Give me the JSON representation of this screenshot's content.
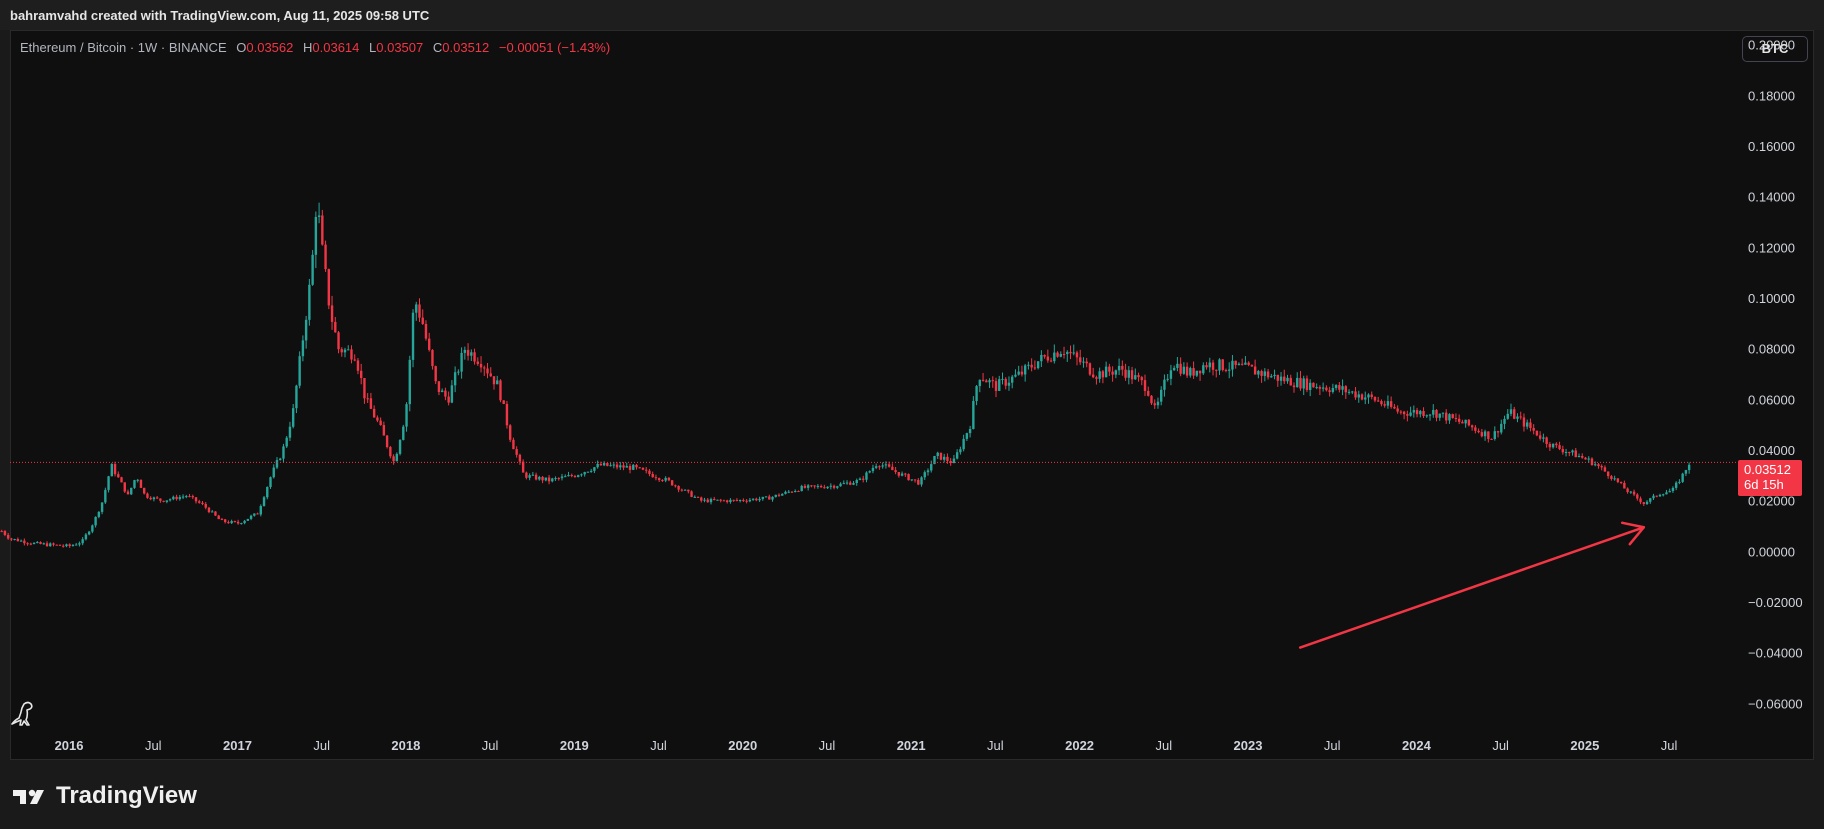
{
  "header": {
    "created_text": "bahramvahd created with TradingView.com, Aug 11, 2025 09:58 UTC"
  },
  "legend": {
    "symbol": "Ethereum / Bitcoin · 1W · BINANCE",
    "o_label": "O",
    "o_value": "0.03562",
    "h_label": "H",
    "h_value": "0.03614",
    "l_label": "L",
    "l_value": "0.03507",
    "c_label": "C",
    "c_value": "0.03512",
    "change": "−0.00051 (−1.43%)"
  },
  "currency_button": "BTC",
  "last_price": {
    "price": "0.03512",
    "countdown": "6d 15h"
  },
  "branding": {
    "logo_text": "TradingView"
  },
  "colors": {
    "up": "#26a69a",
    "down": "#f23645",
    "annotation": "#f23645",
    "background": "#0f0f0f"
  },
  "icons": [
    "tradingview-logo-icon",
    "dinosaur-icon"
  ],
  "chart_data": {
    "type": "candlestick",
    "title": "Ethereum / Bitcoin · 1W · BINANCE",
    "y_ticks": [
      "0.20000",
      "0.18000",
      "0.16000",
      "0.14000",
      "0.12000",
      "0.10000",
      "0.08000",
      "0.06000",
      "0.04000",
      "0.02000",
      "0.00000",
      "−0.02000",
      "−0.04000",
      "−0.06000"
    ],
    "ylim": [
      -0.065,
      0.205
    ],
    "x_ticks": [
      {
        "label": "2016",
        "t": 2016.0,
        "bold": true
      },
      {
        "label": "Jul",
        "t": 2016.5,
        "bold": false
      },
      {
        "label": "2017",
        "t": 2017.0,
        "bold": true
      },
      {
        "label": "Jul",
        "t": 2017.5,
        "bold": false
      },
      {
        "label": "2018",
        "t": 2018.0,
        "bold": true
      },
      {
        "label": "Jul",
        "t": 2018.5,
        "bold": false
      },
      {
        "label": "2019",
        "t": 2019.0,
        "bold": true
      },
      {
        "label": "Jul",
        "t": 2019.5,
        "bold": false
      },
      {
        "label": "2020",
        "t": 2020.0,
        "bold": true
      },
      {
        "label": "Jul",
        "t": 2020.5,
        "bold": false
      },
      {
        "label": "2021",
        "t": 2021.0,
        "bold": true
      },
      {
        "label": "Jul",
        "t": 2021.5,
        "bold": false
      },
      {
        "label": "2022",
        "t": 2022.0,
        "bold": true
      },
      {
        "label": "Jul",
        "t": 2022.5,
        "bold": false
      },
      {
        "label": "2023",
        "t": 2023.0,
        "bold": true
      },
      {
        "label": "Jul",
        "t": 2023.5,
        "bold": false
      },
      {
        "label": "2024",
        "t": 2024.0,
        "bold": true
      },
      {
        "label": "Jul",
        "t": 2024.5,
        "bold": false
      },
      {
        "label": "2025",
        "t": 2025.0,
        "bold": true
      },
      {
        "label": "Jul",
        "t": 2025.5,
        "bold": false
      }
    ],
    "xlim": [
      2015.59,
      2026.42
    ],
    "last_close": 0.03512,
    "grid": false,
    "price_path": [
      [
        2015.6,
        0.008
      ],
      [
        2015.65,
        0.005
      ],
      [
        2015.8,
        0.003
      ],
      [
        2016.0,
        0.002
      ],
      [
        2016.08,
        0.004
      ],
      [
        2016.15,
        0.012
      ],
      [
        2016.2,
        0.02
      ],
      [
        2016.25,
        0.034
      ],
      [
        2016.3,
        0.028
      ],
      [
        2016.35,
        0.022
      ],
      [
        2016.4,
        0.03
      ],
      [
        2016.45,
        0.022
      ],
      [
        2016.55,
        0.02
      ],
      [
        2016.7,
        0.022
      ],
      [
        2016.8,
        0.018
      ],
      [
        2016.9,
        0.012
      ],
      [
        2017.0,
        0.011
      ],
      [
        2017.12,
        0.015
      ],
      [
        2017.2,
        0.03
      ],
      [
        2017.27,
        0.04
      ],
      [
        2017.33,
        0.055
      ],
      [
        2017.38,
        0.08
      ],
      [
        2017.44,
        0.11
      ],
      [
        2017.47,
        0.14
      ],
      [
        2017.5,
        0.12
      ],
      [
        2017.55,
        0.095
      ],
      [
        2017.6,
        0.08
      ],
      [
        2017.7,
        0.078
      ],
      [
        2017.76,
        0.06
      ],
      [
        2017.84,
        0.05
      ],
      [
        2017.93,
        0.035
      ],
      [
        2018.0,
        0.055
      ],
      [
        2018.05,
        0.1
      ],
      [
        2018.1,
        0.09
      ],
      [
        2018.18,
        0.065
      ],
      [
        2018.25,
        0.06
      ],
      [
        2018.35,
        0.08
      ],
      [
        2018.45,
        0.075
      ],
      [
        2018.55,
        0.065
      ],
      [
        2018.62,
        0.045
      ],
      [
        2018.7,
        0.03
      ],
      [
        2018.85,
        0.028
      ],
      [
        2019.0,
        0.03
      ],
      [
        2019.15,
        0.034
      ],
      [
        2019.35,
        0.033
      ],
      [
        2019.55,
        0.028
      ],
      [
        2019.75,
        0.02
      ],
      [
        2019.95,
        0.02
      ],
      [
        2020.15,
        0.021
      ],
      [
        2020.35,
        0.025
      ],
      [
        2020.55,
        0.026
      ],
      [
        2020.7,
        0.028
      ],
      [
        2020.8,
        0.035
      ],
      [
        2020.95,
        0.03
      ],
      [
        2021.05,
        0.027
      ],
      [
        2021.15,
        0.038
      ],
      [
        2021.25,
        0.035
      ],
      [
        2021.35,
        0.05
      ],
      [
        2021.4,
        0.07
      ],
      [
        2021.5,
        0.065
      ],
      [
        2021.65,
        0.07
      ],
      [
        2021.75,
        0.075
      ],
      [
        2021.9,
        0.08
      ],
      [
        2022.0,
        0.075
      ],
      [
        2022.1,
        0.07
      ],
      [
        2022.25,
        0.072
      ],
      [
        2022.4,
        0.065
      ],
      [
        2022.45,
        0.055
      ],
      [
        2022.55,
        0.075
      ],
      [
        2022.65,
        0.07
      ],
      [
        2022.75,
        0.074
      ],
      [
        2023.0,
        0.072
      ],
      [
        2023.2,
        0.068
      ],
      [
        2023.35,
        0.066
      ],
      [
        2023.55,
        0.064
      ],
      [
        2023.75,
        0.06
      ],
      [
        2023.9,
        0.055
      ],
      [
        2024.1,
        0.055
      ],
      [
        2024.3,
        0.05
      ],
      [
        2024.45,
        0.045
      ],
      [
        2024.55,
        0.055
      ],
      [
        2024.65,
        0.05
      ],
      [
        2024.8,
        0.042
      ],
      [
        2024.95,
        0.038
      ],
      [
        2025.05,
        0.035
      ],
      [
        2025.15,
        0.03
      ],
      [
        2025.25,
        0.024
      ],
      [
        2025.35,
        0.019
      ],
      [
        2025.45,
        0.023
      ],
      [
        2025.52,
        0.024
      ],
      [
        2025.58,
        0.03
      ],
      [
        2025.62,
        0.035
      ]
    ],
    "annotation_arrow": {
      "from": [
        2023.31,
        -0.038
      ],
      "to": [
        2025.35,
        0.0095
      ],
      "color": "#f23645"
    }
  }
}
